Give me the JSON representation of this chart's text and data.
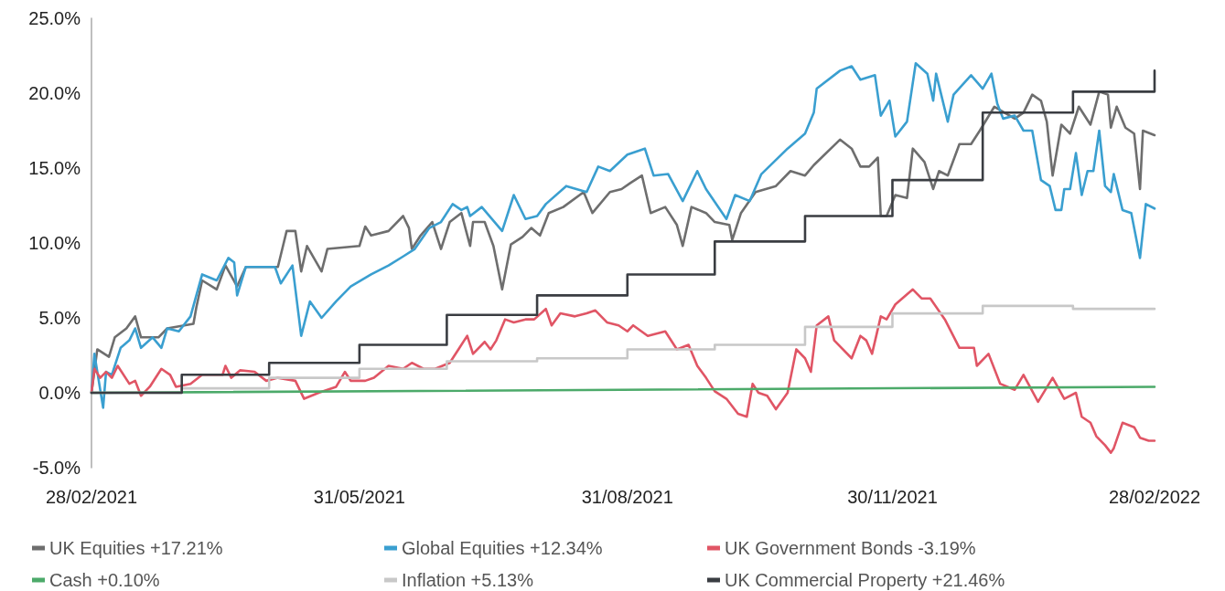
{
  "chart_data": {
    "type": "line",
    "xlim": [
      "2021-02-28",
      "2022-02-28"
    ],
    "xticks": [
      {
        "value": "2021-02-28",
        "label": "28/02/2021"
      },
      {
        "value": "2021-05-31",
        "label": "31/05/2021"
      },
      {
        "value": "2021-08-31",
        "label": "31/08/2021"
      },
      {
        "value": "2021-11-30",
        "label": "30/11/2021"
      },
      {
        "value": "2022-02-28",
        "label": "28/02/2022"
      }
    ],
    "ylim": [
      -5,
      25
    ],
    "yticks": [
      {
        "value": -5,
        "label": "-5.0%"
      },
      {
        "value": 0,
        "label": "0.0%"
      },
      {
        "value": 5,
        "label": "5.0%"
      },
      {
        "value": 10,
        "label": "10.0%"
      },
      {
        "value": 15,
        "label": "15.0%"
      },
      {
        "value": 20,
        "label": "20.0%"
      },
      {
        "value": 25,
        "label": "25.0%"
      }
    ],
    "grid": false,
    "legend": "bottom",
    "series": [
      {
        "name": "UK Equities +17.21%",
        "color": "#6e6e6e",
        "x": [
          "2021-02-28",
          "2021-03-02",
          "2021-03-06",
          "2021-03-08",
          "2021-03-12",
          "2021-03-15",
          "2021-03-17",
          "2021-03-23",
          "2021-03-26",
          "2021-04-04",
          "2021-04-05",
          "2021-04-07",
          "2021-04-12",
          "2021-04-15",
          "2021-04-19",
          "2021-04-22",
          "2021-05-03",
          "2021-05-06",
          "2021-05-09",
          "2021-05-11",
          "2021-05-13",
          "2021-05-18",
          "2021-05-20",
          "2021-05-31",
          "2021-06-02",
          "2021-06-04",
          "2021-06-10",
          "2021-06-15",
          "2021-06-17",
          "2021-06-18",
          "2021-06-21",
          "2021-06-25",
          "2021-06-28",
          "2021-07-01",
          "2021-07-05",
          "2021-07-08",
          "2021-07-09",
          "2021-07-13",
          "2021-07-16",
          "2021-07-19",
          "2021-07-22",
          "2021-07-26",
          "2021-07-29",
          "2021-08-01",
          "2021-08-04",
          "2021-08-09",
          "2021-08-16",
          "2021-08-19",
          "2021-08-25",
          "2021-08-29",
          "2021-09-01",
          "2021-09-05",
          "2021-09-08",
          "2021-09-13",
          "2021-09-17",
          "2021-09-19",
          "2021-09-22",
          "2021-09-27",
          "2021-09-30",
          "2021-10-05",
          "2021-10-06",
          "2021-10-09",
          "2021-10-14",
          "2021-10-21",
          "2021-10-26",
          "2021-10-31",
          "2021-11-03",
          "2021-11-12",
          "2021-11-16",
          "2021-11-19",
          "2021-11-22",
          "2021-11-25",
          "2021-11-26",
          "2021-11-28",
          "2021-12-01",
          "2021-12-05",
          "2021-12-07",
          "2021-12-11",
          "2021-12-14",
          "2021-12-16",
          "2021-12-19",
          "2021-12-23",
          "2021-12-27",
          "2021-12-30",
          "2022-01-04",
          "2022-01-11",
          "2022-01-14",
          "2022-01-17",
          "2022-01-20",
          "2022-01-22",
          "2022-01-24",
          "2022-01-27",
          "2022-01-30",
          "2022-02-02",
          "2022-02-06",
          "2022-02-09",
          "2022-02-12",
          "2022-02-13",
          "2022-02-15",
          "2022-02-18",
          "2022-02-21",
          "2022-02-23",
          "2022-02-24",
          "2022-02-28"
        ],
        "values": [
          0,
          2.9,
          2.4,
          3.7,
          4.3,
          5.1,
          3.7,
          3.7,
          4.3,
          4.6,
          5.7,
          7.5,
          6.9,
          8.5,
          7.1,
          8.4,
          8.4,
          10.8,
          10.8,
          8.1,
          9.8,
          8.1,
          9.6,
          9.8,
          11.1,
          10.5,
          10.8,
          11.8,
          11.0,
          9.6,
          10.5,
          11.4,
          9.6,
          11.4,
          12.0,
          9.8,
          11.4,
          11.4,
          9.8,
          6.9,
          9.9,
          10.4,
          11.0,
          10.5,
          12.0,
          12.4,
          13.4,
          12.0,
          13.4,
          13.6,
          14.0,
          14.5,
          12.0,
          12.4,
          11.2,
          9.8,
          12.4,
          12.0,
          11.4,
          11.2,
          10.2,
          12.0,
          13.4,
          13.8,
          14.8,
          14.5,
          15.2,
          16.9,
          16.3,
          15.1,
          15.1,
          15.7,
          11.8,
          11.8,
          13.2,
          13.0,
          16.3,
          15.4,
          13.6,
          14.8,
          14.5,
          16.6,
          16.6,
          17.5,
          19.1,
          18.3,
          18.7,
          19.9,
          19.5,
          18.1,
          14.5,
          17.9,
          17.3,
          19.1,
          17.9,
          20.1,
          19.9,
          17.7,
          19.1,
          17.7,
          17.3,
          13.6,
          17.5,
          17.2
        ]
      },
      {
        "name": "Global Equities +12.34%",
        "color": "#3a9fd0",
        "x": [
          "2021-02-28",
          "2021-03-01",
          "2021-03-04",
          "2021-03-05",
          "2021-03-07",
          "2021-03-10",
          "2021-03-13",
          "2021-03-15",
          "2021-03-17",
          "2021-03-21",
          "2021-03-24",
          "2021-03-26",
          "2021-03-30",
          "2021-04-03",
          "2021-04-07",
          "2021-04-12",
          "2021-04-16",
          "2021-04-18",
          "2021-04-19",
          "2021-04-22",
          "2021-05-02",
          "2021-05-04",
          "2021-05-08",
          "2021-05-11",
          "2021-05-14",
          "2021-05-18",
          "2021-05-23",
          "2021-05-28",
          "2021-06-04",
          "2021-06-10",
          "2021-06-15",
          "2021-06-19",
          "2021-06-24",
          "2021-06-28",
          "2021-07-02",
          "2021-07-05",
          "2021-07-07",
          "2021-07-08",
          "2021-07-12",
          "2021-07-19",
          "2021-07-23",
          "2021-07-27",
          "2021-07-31",
          "2021-08-03",
          "2021-08-10",
          "2021-08-17",
          "2021-08-21",
          "2021-08-25",
          "2021-08-31",
          "2021-09-06",
          "2021-09-09",
          "2021-09-14",
          "2021-09-19",
          "2021-09-24",
          "2021-09-27",
          "2021-10-04",
          "2021-10-07",
          "2021-10-12",
          "2021-10-16",
          "2021-10-25",
          "2021-10-31",
          "2021-11-03",
          "2021-11-04",
          "2021-11-12",
          "2021-11-16",
          "2021-11-19",
          "2021-11-24",
          "2021-11-26",
          "2021-11-29",
          "2021-12-01",
          "2021-12-05",
          "2021-12-08",
          "2021-12-12",
          "2021-12-14",
          "2021-12-15",
          "2021-12-19",
          "2021-12-21",
          "2021-12-27",
          "2021-12-31",
          "2022-01-03",
          "2022-01-05",
          "2022-01-07",
          "2022-01-11",
          "2022-01-14",
          "2022-01-17",
          "2022-01-20",
          "2022-01-23",
          "2022-01-25",
          "2022-01-27",
          "2022-01-28",
          "2022-01-30",
          "2022-02-01",
          "2022-02-03",
          "2022-02-05",
          "2022-02-07",
          "2022-02-09",
          "2022-02-11",
          "2022-02-13",
          "2022-02-14",
          "2022-02-17",
          "2022-02-20",
          "2022-02-23",
          "2022-02-25",
          "2022-02-28"
        ],
        "values": [
          0,
          2.6,
          -1.0,
          1.4,
          1.2,
          3.0,
          3.5,
          4.3,
          3.0,
          3.7,
          3.0,
          4.3,
          4.1,
          5.1,
          7.9,
          7.5,
          9.0,
          8.7,
          6.5,
          8.4,
          8.4,
          7.3,
          8.5,
          3.8,
          6.1,
          5.0,
          6.1,
          7.1,
          7.9,
          8.5,
          9.1,
          9.6,
          11.0,
          11.4,
          12.6,
          12.2,
          12.4,
          11.8,
          12.4,
          10.8,
          13.2,
          11.6,
          11.8,
          12.6,
          13.8,
          13.4,
          15.1,
          14.8,
          15.9,
          16.3,
          14.5,
          14.6,
          12.8,
          14.8,
          13.6,
          11.6,
          13.2,
          12.8,
          14.6,
          16.3,
          17.3,
          18.7,
          20.3,
          21.5,
          21.8,
          20.9,
          21.2,
          18.5,
          19.5,
          17.1,
          18.1,
          22.0,
          21.3,
          19.5,
          21.3,
          18.1,
          19.9,
          21.2,
          20.3,
          21.3,
          19.3,
          18.3,
          18.5,
          17.5,
          17.5,
          14.2,
          13.8,
          12.2,
          12.2,
          13.6,
          13.6,
          16.0,
          13.2,
          14.8,
          14.8,
          17.5,
          13.8,
          13.4,
          14.6,
          12.2,
          12.0,
          9.0,
          12.6,
          12.3
        ]
      },
      {
        "name": "UK Government Bonds -3.19%",
        "color": "#e05565",
        "x": [
          "2021-02-28",
          "2021-03-01",
          "2021-03-03",
          "2021-03-05",
          "2021-03-07",
          "2021-03-09",
          "2021-03-13",
          "2021-03-15",
          "2021-03-17",
          "2021-03-20",
          "2021-03-24",
          "2021-03-27",
          "2021-03-29",
          "2021-04-03",
          "2021-04-07",
          "2021-04-14",
          "2021-04-15",
          "2021-04-17",
          "2021-04-20",
          "2021-04-25",
          "2021-04-29",
          "2021-05-03",
          "2021-05-09",
          "2021-05-12",
          "2021-05-17",
          "2021-05-23",
          "2021-05-26",
          "2021-05-28",
          "2021-06-02",
          "2021-06-05",
          "2021-06-10",
          "2021-06-15",
          "2021-06-18",
          "2021-06-22",
          "2021-06-26",
          "2021-07-01",
          "2021-07-04",
          "2021-07-07",
          "2021-07-09",
          "2021-07-13",
          "2021-07-15",
          "2021-07-17",
          "2021-07-20",
          "2021-07-23",
          "2021-07-27",
          "2021-07-30",
          "2021-08-03",
          "2021-08-05",
          "2021-08-08",
          "2021-08-13",
          "2021-08-17",
          "2021-08-20",
          "2021-08-24",
          "2021-08-28",
          "2021-08-31",
          "2021-09-02",
          "2021-09-07",
          "2021-09-13",
          "2021-09-17",
          "2021-09-21",
          "2021-09-24",
          "2021-09-27",
          "2021-09-30",
          "2021-10-04",
          "2021-10-08",
          "2021-10-11",
          "2021-10-13",
          "2021-10-15",
          "2021-10-18",
          "2021-10-21",
          "2021-10-25",
          "2021-10-28",
          "2021-10-31",
          "2021-11-02",
          "2021-11-04",
          "2021-11-08",
          "2021-11-10",
          "2021-11-16",
          "2021-11-19",
          "2021-11-21",
          "2021-11-23",
          "2021-11-26",
          "2021-11-28",
          "2021-12-01",
          "2021-12-07",
          "2021-12-10",
          "2021-12-13",
          "2021-12-18",
          "2021-12-23",
          "2021-12-28",
          "2021-12-29",
          "2022-01-02",
          "2022-01-06",
          "2022-01-11",
          "2022-01-14",
          "2022-01-19",
          "2022-01-24",
          "2022-01-28",
          "2022-02-01",
          "2022-02-03",
          "2022-02-06",
          "2022-02-08",
          "2022-02-11",
          "2022-02-13",
          "2022-02-14",
          "2022-02-17",
          "2022-02-21",
          "2022-02-23",
          "2022-02-26",
          "2022-02-28"
        ],
        "values": [
          0,
          1.6,
          1.0,
          1.4,
          1.0,
          1.8,
          0.6,
          0.8,
          -0.2,
          0.4,
          1.6,
          1.2,
          0.4,
          0.6,
          1.2,
          1.2,
          1.8,
          1.0,
          1.5,
          1.4,
          0.8,
          1.0,
          0.8,
          -0.4,
          0.0,
          0.4,
          1.4,
          0.8,
          0.8,
          1.0,
          1.8,
          1.6,
          2.0,
          1.6,
          1.6,
          2.0,
          2.9,
          3.8,
          2.6,
          3.4,
          2.9,
          3.5,
          4.9,
          4.7,
          4.9,
          4.9,
          5.6,
          4.5,
          5.3,
          5.1,
          5.3,
          5.5,
          4.7,
          4.5,
          4.1,
          4.5,
          3.8,
          4.1,
          2.9,
          3.2,
          1.8,
          1.0,
          0.1,
          -0.4,
          -1.4,
          -1.6,
          0.6,
          0.0,
          -0.2,
          -1.1,
          0.0,
          2.9,
          2.3,
          1.4,
          4.5,
          5.1,
          3.5,
          2.3,
          3.8,
          3.5,
          2.6,
          5.1,
          4.9,
          5.9,
          6.9,
          6.3,
          6.3,
          4.9,
          3.0,
          3.0,
          1.8,
          2.6,
          0.6,
          0.2,
          1.2,
          -0.6,
          1.0,
          -0.4,
          0.0,
          -1.6,
          -2.0,
          -2.9,
          -3.5,
          -4.0,
          -3.7,
          -2.0,
          -2.3,
          -3.0,
          -3.2,
          -3.2
        ]
      },
      {
        "name": "Cash +0.10%",
        "color": "#4caa6a",
        "x": [
          "2021-02-28",
          "2022-02-28"
        ],
        "values": [
          0,
          0.4
        ]
      },
      {
        "name": "Inflation +5.13%",
        "color": "#c8c8c8",
        "type": "step",
        "x": [
          "2021-02-28",
          "2021-03-31",
          "2021-04-30",
          "2021-05-31",
          "2021-06-30",
          "2021-07-31",
          "2021-08-31",
          "2021-09-30",
          "2021-10-31",
          "2021-11-30",
          "2021-12-31",
          "2022-01-31",
          "2022-02-28"
        ],
        "values": [
          0,
          0.3,
          1.0,
          1.6,
          2.1,
          2.3,
          2.9,
          3.2,
          4.4,
          5.3,
          5.8,
          5.6,
          5.6
        ]
      },
      {
        "name": "UK Commercial Property +21.46%",
        "color": "#3a3d42",
        "type": "step",
        "x": [
          "2021-02-28",
          "2021-03-31",
          "2021-04-30",
          "2021-05-31",
          "2021-06-30",
          "2021-07-31",
          "2021-08-31",
          "2021-09-30",
          "2021-10-31",
          "2021-11-30",
          "2021-12-31",
          "2022-01-31",
          "2022-02-28"
        ],
        "values": [
          0,
          1.2,
          2.0,
          3.2,
          5.2,
          6.5,
          7.9,
          10.1,
          11.8,
          14.2,
          18.7,
          20.1,
          21.5
        ]
      }
    ]
  }
}
